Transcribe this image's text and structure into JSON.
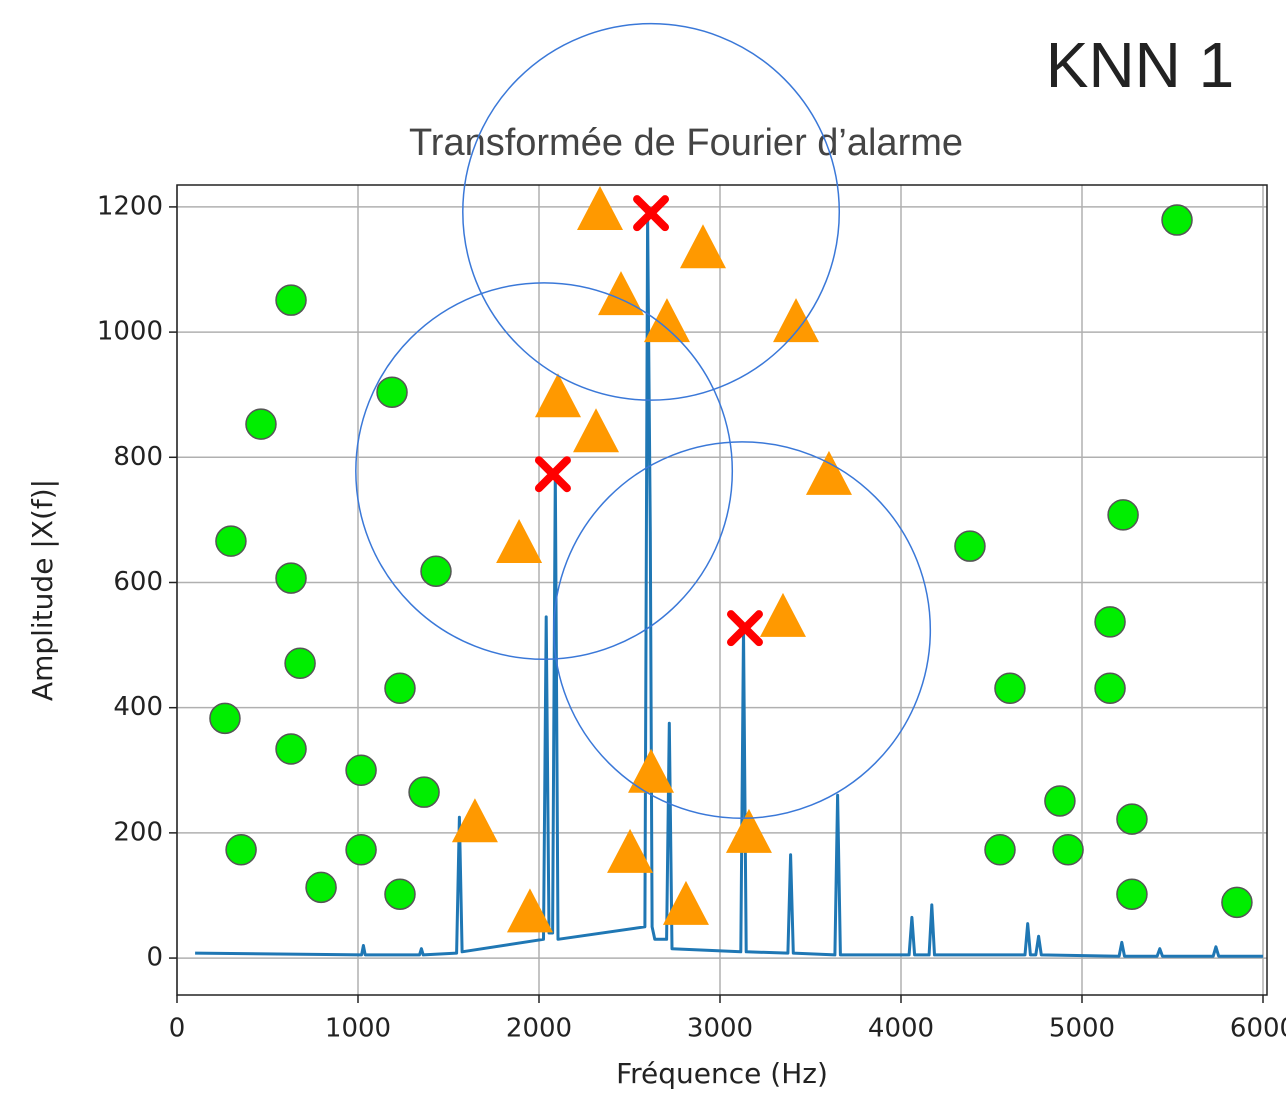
{
  "chart_data": {
    "type": "scatter",
    "annotation": "KNN 1",
    "title": "Transformée de Fourier d’alarme",
    "xlabel": "Fréquence (Hz)",
    "ylabel": "Amplitude |X(f)|",
    "xlim": [
      0,
      6000
    ],
    "ylim": [
      -59,
      1235
    ],
    "xticks": [
      0,
      1000,
      2000,
      3000,
      4000,
      5000,
      6000
    ],
    "yticks": [
      0,
      200,
      400,
      600,
      800,
      1000,
      1200
    ],
    "grid": true,
    "series": [
      {
        "type": "line",
        "color": "#1f77b4",
        "x": [
          100,
          1020,
          1030,
          1040,
          1340,
          1350,
          1360,
          1545,
          1560,
          1575,
          2025,
          2040,
          2055,
          2075,
          2090,
          2105,
          2585,
          2600,
          2615,
          2625,
          2640,
          2705,
          2720,
          2735,
          3115,
          3130,
          3145,
          3375,
          3390,
          3405,
          3635,
          3650,
          3665,
          4045,
          4060,
          4075,
          4155,
          4170,
          4185,
          4685,
          4700,
          4715,
          4745,
          4760,
          4775,
          5205,
          5220,
          5235,
          5415,
          5430,
          5445,
          5725,
          5740,
          5755,
          6000
        ],
        "values": [
          8,
          5,
          20,
          5,
          5,
          15,
          5,
          8,
          225,
          10,
          30,
          545,
          40,
          40,
          775,
          30,
          50,
          1185,
          680,
          50,
          30,
          30,
          375,
          15,
          10,
          525,
          10,
          8,
          165,
          8,
          5,
          260,
          5,
          5,
          65,
          5,
          5,
          85,
          5,
          5,
          55,
          5,
          5,
          35,
          5,
          3,
          25,
          3,
          3,
          15,
          3,
          3,
          18,
          3,
          3
        ]
      },
      {
        "type": "scatter",
        "marker": "circle",
        "color": "#00ee00",
        "x": [
          630,
          1188,
          464,
          298,
          630,
          1431,
          680,
          265,
          1232,
          630,
          1017,
          1365,
          354,
          1017,
          796,
          1232,
          5525,
          4381,
          5227,
          5155,
          4602,
          5155,
          4878,
          5276,
          4547,
          4923,
          5276,
          5856
        ],
        "values": [
          1051,
          904,
          853,
          666,
          607,
          618,
          471,
          383,
          431,
          334,
          300,
          265,
          173,
          173,
          113,
          102,
          1179,
          658,
          708,
          537,
          431,
          431,
          251,
          222,
          173,
          173,
          102,
          89
        ]
      },
      {
        "type": "scatter",
        "marker": "triangle",
        "color": "#ff9900",
        "x": [
          2337,
          2906,
          2453,
          2707,
          3420,
          2105,
          2315,
          3602,
          1890,
          3348,
          2619,
          1646,
          3160,
          2503,
          2812,
          1950
        ],
        "values": [
          1195,
          1134,
          1059,
          1016,
          1016,
          896,
          840,
          772,
          663,
          545,
          296,
          217,
          200,
          168,
          85,
          73
        ]
      },
      {
        "type": "scatter",
        "marker": "x",
        "color": "#ff0000",
        "x": [
          2619,
          2077,
          3138
        ],
        "values": [
          1190,
          773,
          527
        ]
      }
    ],
    "circles": {
      "color": "#3a78d8",
      "radius": 1040,
      "x": [
        2619,
        2028,
        3122
      ],
      "values": [
        1192,
        778,
        524
      ]
    }
  }
}
